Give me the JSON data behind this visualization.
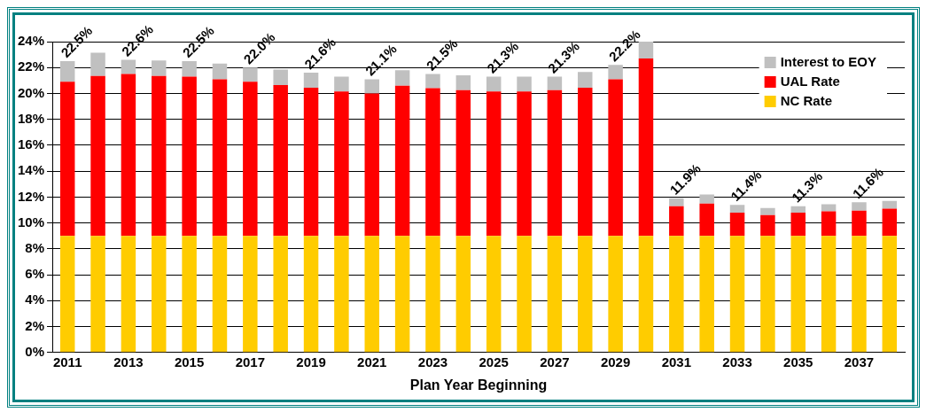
{
  "chart_data": {
    "type": "bar",
    "stacked": true,
    "xlabel": "Plan Year Beginning",
    "categories": [
      "2011",
      null,
      "2013",
      null,
      "2015",
      null,
      "2017",
      null,
      "2019",
      null,
      "2021",
      null,
      "2023",
      null,
      "2025",
      null,
      "2027",
      null,
      "2029",
      null,
      "2031",
      null,
      "2033",
      null,
      "2035",
      null,
      "2037",
      null
    ],
    "series": [
      {
        "name": "NC Rate",
        "color": "#ffcc00",
        "values": [
          9,
          9,
          9,
          9,
          9,
          9,
          9,
          9,
          9,
          9,
          9,
          9,
          9,
          9,
          9,
          9,
          9,
          9,
          9,
          9,
          9,
          9,
          9,
          9,
          9,
          9,
          9,
          9
        ]
      },
      {
        "name": "UAL Rate",
        "color": "#ff0000",
        "values": [
          11.9,
          12.35,
          12.5,
          12.35,
          12.3,
          12.1,
          11.9,
          11.65,
          11.45,
          11.15,
          11.0,
          11.6,
          11.4,
          11.25,
          11.15,
          11.15,
          11.25,
          11.45,
          12.1,
          13.7,
          2.3,
          2.5,
          1.8,
          1.6,
          1.8,
          1.9,
          1.95,
          2.1
        ]
      },
      {
        "name": "Interest to EOY",
        "color": "#c0c0c0",
        "values": [
          1.6,
          1.8,
          1.1,
          1.2,
          1.2,
          1.2,
          1.1,
          1.2,
          1.15,
          1.15,
          1.1,
          1.2,
          1.1,
          1.15,
          1.15,
          1.15,
          1.05,
          1.2,
          1.1,
          1.3,
          0.6,
          0.7,
          0.6,
          0.55,
          0.5,
          0.55,
          0.65,
          0.6
        ]
      }
    ],
    "totals": [
      "22.5%",
      null,
      "22.6%",
      null,
      "22.5%",
      null,
      "22.0%",
      null,
      "21.6%",
      null,
      "21.1%",
      null,
      "21.5%",
      null,
      "21.3%",
      null,
      "21.3%",
      null,
      "22.2%",
      null,
      "11.9%",
      null,
      "11.4%",
      null,
      "11.3%",
      null,
      "11.6%",
      null
    ],
    "ylim": [
      0,
      24
    ],
    "yticks": [
      {
        "value": 0,
        "label": "0%"
      },
      {
        "value": 2,
        "label": "2%"
      },
      {
        "value": 4,
        "label": "4%"
      },
      {
        "value": 6,
        "label": "6%"
      },
      {
        "value": 8,
        "label": "8%"
      },
      {
        "value": 10,
        "label": "10%"
      },
      {
        "value": 12,
        "label": "12%"
      },
      {
        "value": 14,
        "label": "14%"
      },
      {
        "value": 16,
        "label": "16%"
      },
      {
        "value": 18,
        "label": "18%"
      },
      {
        "value": 20,
        "label": "20%"
      },
      {
        "value": 22,
        "label": "22%"
      },
      {
        "value": 24,
        "label": "24%"
      }
    ],
    "grid": "y",
    "legend": "top right"
  }
}
